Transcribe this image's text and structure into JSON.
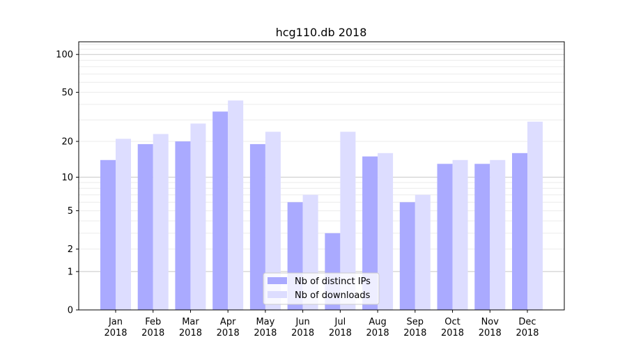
{
  "chart_data": {
    "type": "bar",
    "title": "hcg110.db 2018",
    "xlabel": "",
    "ylabel": "",
    "yscale": "symlog (log of value+1)",
    "ylim": [
      0,
      126
    ],
    "yticks": [
      0,
      1,
      2,
      5,
      10,
      20,
      50,
      100
    ],
    "grid": true,
    "legend_position": "bottom-center",
    "categories": [
      "Jan\n2018",
      "Feb\n2018",
      "Mar\n2018",
      "Apr\n2018",
      "May\n2018",
      "Jun\n2018",
      "Jul\n2018",
      "Aug\n2018",
      "Sep\n2018",
      "Oct\n2018",
      "Nov\n2018",
      "Dec\n2018"
    ],
    "series": [
      {
        "name": "Nb of distinct IPs",
        "color": "#aaaaff",
        "values": [
          14,
          19,
          20,
          35,
          19,
          6,
          3,
          15,
          6,
          13,
          13,
          16
        ]
      },
      {
        "name": "Nb of downloads",
        "color": "#ddddff",
        "values": [
          21,
          23,
          28,
          43,
          24,
          7,
          24,
          16,
          7,
          14,
          14,
          29
        ]
      }
    ]
  }
}
